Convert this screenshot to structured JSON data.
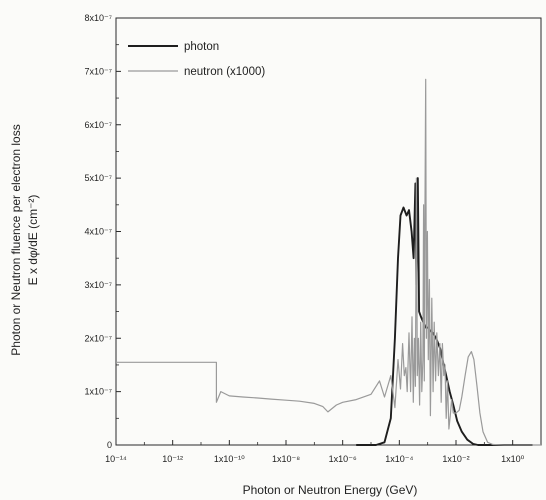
{
  "chart_data": {
    "type": "line",
    "xscale": "log",
    "xlabel": "Photon or Neutron Energy (GeV)",
    "ylabel_line1": "Photon or Neutron fluence per electron loss",
    "ylabel_line2": "E x dφ/dE (cm⁻²)",
    "xlim": [
      1e-14,
      10
    ],
    "ylim": [
      0,
      8e-07
    ],
    "xticks": [
      {
        "value": 1e-14,
        "label": "10⁻¹⁴"
      },
      {
        "value": 1e-12,
        "label": "10⁻¹²"
      },
      {
        "value": 1e-10,
        "label": "1x10⁻¹⁰"
      },
      {
        "value": 1e-08,
        "label": "1x10⁻⁸"
      },
      {
        "value": 1e-06,
        "label": "1x10⁻⁶"
      },
      {
        "value": 0.0001,
        "label": "1x10⁻⁴"
      },
      {
        "value": 0.01,
        "label": "1x10⁻²"
      },
      {
        "value": 1,
        "label": "1x10⁰"
      }
    ],
    "yticks": [
      {
        "value": 0,
        "label": "0"
      },
      {
        "value": 1e-07,
        "label": "1x10⁻⁷"
      },
      {
        "value": 2e-07,
        "label": "2x10⁻⁷"
      },
      {
        "value": 3e-07,
        "label": "3x10⁻⁷"
      },
      {
        "value": 4e-07,
        "label": "4x10⁻⁷"
      },
      {
        "value": 5e-07,
        "label": "5x10⁻⁷"
      },
      {
        "value": 6e-07,
        "label": "6x10⁻⁷"
      },
      {
        "value": 7e-07,
        "label": "7x10⁻⁷"
      },
      {
        "value": 8e-07,
        "label": "8x10⁻⁷"
      }
    ],
    "grid": false,
    "legend_position": "top-left",
    "series": [
      {
        "name": "photon",
        "color": "#1e1e1e",
        "points": [
          [
            3e-06,
            0
          ],
          [
            1.5e-05,
            0
          ],
          [
            3e-05,
            5e-09
          ],
          [
            5e-05,
            5e-08
          ],
          [
            7e-05,
            2e-07
          ],
          [
            9e-05,
            3.5e-07
          ],
          [
            0.00011,
            4.3e-07
          ],
          [
            0.00014,
            4.45e-07
          ],
          [
            0.00018,
            4.3e-07
          ],
          [
            0.00022,
            4.4e-07
          ],
          [
            0.00027,
            4e-07
          ],
          [
            0.00032,
            3.5e-07
          ],
          [
            0.00037,
            4.9e-07
          ],
          [
            0.0004,
            3e-07
          ],
          [
            0.00045,
            5e-07
          ],
          [
            0.0005,
            2.5e-07
          ],
          [
            0.00058,
            2.4e-07
          ],
          [
            0.0007,
            2.3e-07
          ],
          [
            0.00085,
            2.2e-07
          ],
          [
            0.001,
            2.2e-07
          ],
          [
            0.0012,
            2.15e-07
          ],
          [
            0.0015,
            2.1e-07
          ],
          [
            0.002,
            2e-07
          ],
          [
            0.0028,
            1.8e-07
          ],
          [
            0.0035,
            1.55e-07
          ],
          [
            0.0045,
            1.3e-07
          ],
          [
            0.006,
            1e-07
          ],
          [
            0.008,
            7.5e-08
          ],
          [
            0.011,
            4.5e-08
          ],
          [
            0.016,
            2.5e-08
          ],
          [
            0.025,
            1e-08
          ],
          [
            0.04,
            2e-09
          ],
          [
            0.06,
            0
          ],
          [
            5,
            0
          ]
        ]
      },
      {
        "name": "neutron (x1000)",
        "color": "#9a9a9a",
        "points": [
          [
            1e-14,
            1.55e-07
          ],
          [
            3.5e-11,
            1.55e-07
          ],
          [
            3.5e-11,
            8e-08
          ],
          [
            5e-11,
            1e-07
          ],
          [
            1e-10,
            9.2e-08
          ],
          [
            3e-10,
            9e-08
          ],
          [
            1e-09,
            8.8e-08
          ],
          [
            3e-09,
            8.6e-08
          ],
          [
            1e-08,
            8.4e-08
          ],
          [
            3e-08,
            8.2e-08
          ],
          [
            1e-07,
            7.8e-08
          ],
          [
            2e-07,
            7.2e-08
          ],
          [
            3e-07,
            6.2e-08
          ],
          [
            6e-07,
            7.5e-08
          ],
          [
            1e-06,
            8e-08
          ],
          [
            3e-06,
            8.5e-08
          ],
          [
            1e-05,
            9.5e-08
          ],
          [
            2e-05,
            1.2e-07
          ],
          [
            3e-05,
            9e-08
          ],
          [
            5e-05,
            1.3e-07
          ],
          [
            7e-05,
            7e-08
          ],
          [
            9e-05,
            1.6e-07
          ],
          [
            0.00011,
            1.05e-07
          ],
          [
            0.00013,
            1.9e-07
          ],
          [
            0.00015,
            1.3e-07
          ],
          [
            0.00017,
            1.45e-07
          ],
          [
            0.00019,
            1e-07
          ],
          [
            0.00022,
            2.1e-07
          ],
          [
            0.00025,
            1e-07
          ],
          [
            0.00028,
            2.4e-07
          ],
          [
            0.00031,
            8e-08
          ],
          [
            0.00034,
            2e-07
          ],
          [
            0.00037,
            1.1e-07
          ],
          [
            0.0004,
            5e-07
          ],
          [
            0.00043,
            1.3e-07
          ],
          [
            0.00047,
            2e-07
          ],
          [
            0.00052,
            7.5e-08
          ],
          [
            0.00057,
            2.3e-07
          ],
          [
            0.00062,
            1e-07
          ],
          [
            0.00068,
            1.6e-07
          ],
          [
            0.00072,
            4.5e-07
          ],
          [
            0.00076,
            1.2e-07
          ],
          [
            0.0008,
            4.2e-07
          ],
          [
            0.00085,
            6.85e-07
          ],
          [
            0.0009,
            2e-07
          ],
          [
            0.00098,
            4e-07
          ],
          [
            0.00105,
            1.6e-07
          ],
          [
            0.00115,
            3.1e-07
          ],
          [
            0.00125,
            5.5e-08
          ],
          [
            0.0014,
            2.75e-07
          ],
          [
            0.00155,
            1e-07
          ],
          [
            0.0017,
            2.3e-07
          ],
          [
            0.0019,
            1.2e-07
          ],
          [
            0.0021,
            2.1e-07
          ],
          [
            0.0024,
            1.3e-07
          ],
          [
            0.0027,
            1.9e-07
          ],
          [
            0.003,
            8e-08
          ],
          [
            0.0033,
            1.9e-07
          ],
          [
            0.0037,
            1.3e-07
          ],
          [
            0.0041,
            1.5e-07
          ],
          [
            0.0045,
            5e-08
          ],
          [
            0.005,
            1.2e-07
          ],
          [
            0.0056,
            3e-08
          ],
          [
            0.0063,
            5.5e-08
          ],
          [
            0.007,
            8.5e-08
          ],
          [
            0.008,
            6e-08
          ],
          [
            0.01,
            6e-08
          ],
          [
            0.013,
            6.5e-08
          ],
          [
            0.016,
            9e-08
          ],
          [
            0.021,
            1.3e-07
          ],
          [
            0.027,
            1.65e-07
          ],
          [
            0.035,
            1.75e-07
          ],
          [
            0.043,
            1.6e-07
          ],
          [
            0.055,
            1.1e-07
          ],
          [
            0.07,
            6e-08
          ],
          [
            0.09,
            2.5e-08
          ],
          [
            0.13,
            5e-09
          ],
          [
            0.2,
            1e-09
          ],
          [
            0.5,
            0
          ],
          [
            10,
            0
          ]
        ]
      }
    ]
  }
}
